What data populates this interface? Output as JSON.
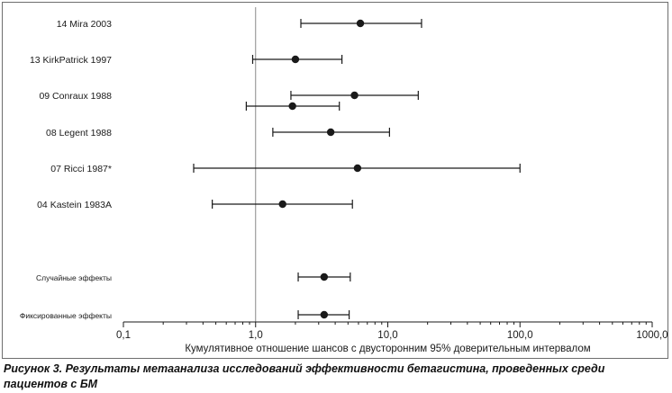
{
  "chart_data": {
    "type": "forest",
    "scale": "log",
    "xlim": [
      0.1,
      1000
    ],
    "reference_line": 1.0,
    "x_ticks": [
      0.1,
      1,
      10,
      100,
      1000
    ],
    "x_tick_labels": [
      "0,1",
      "1,0",
      "10,0",
      "100,0",
      "1000,0"
    ],
    "xlabel": "Кумулятивное отношение шансов с двусторонним 95% доверительным интервалом",
    "rows": [
      {
        "label": "14 Mira 2003",
        "group": "study",
        "points": [
          {
            "or": 6.2,
            "lo": 2.2,
            "hi": 18.0
          }
        ]
      },
      {
        "label": "13 KirkPatrick 1997",
        "group": "study",
        "points": [
          {
            "or": 2.0,
            "lo": 0.95,
            "hi": 4.5
          }
        ]
      },
      {
        "label": "09 Conraux 1988",
        "group": "study",
        "points": [
          {
            "or": 5.6,
            "lo": 1.85,
            "hi": 17.0
          },
          {
            "or": 1.9,
            "lo": 0.85,
            "hi": 4.3
          }
        ]
      },
      {
        "label": "08 Legent 1988",
        "group": "study",
        "points": [
          {
            "or": 3.7,
            "lo": 1.35,
            "hi": 10.3
          }
        ]
      },
      {
        "label": "07 Ricci 1987*",
        "group": "study",
        "points": [
          {
            "or": 5.9,
            "lo": 0.34,
            "hi": 100.0
          }
        ]
      },
      {
        "label": "04 Kastein 1983A",
        "group": "study",
        "points": [
          {
            "or": 1.6,
            "lo": 0.47,
            "hi": 5.4
          }
        ]
      },
      {
        "label": "Случайные эффекты",
        "group": "pooled",
        "points": [
          {
            "or": 3.3,
            "lo": 2.1,
            "hi": 5.2
          }
        ]
      },
      {
        "label": "Фиксированные эффекты",
        "group": "pooled",
        "points": [
          {
            "or": 3.3,
            "lo": 2.1,
            "hi": 5.1
          }
        ]
      }
    ]
  },
  "caption": "Рисунок 3. Результаты метаанализа исследований эффективности бетагистина, проведенных среди пациентов с БМ"
}
